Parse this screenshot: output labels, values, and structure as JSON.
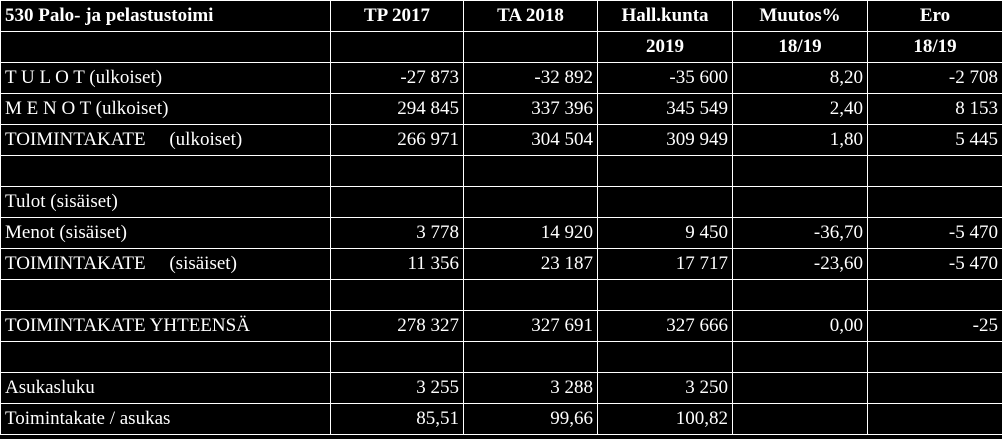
{
  "header": {
    "row1": [
      "530 Palo- ja pelastustoimi",
      "TP 2017",
      "TA 2018",
      "Hall.kunta",
      "Muutos%",
      "Ero"
    ],
    "row2": [
      "",
      "",
      "",
      "2019",
      "18/19",
      "18/19"
    ]
  },
  "rows": [
    [
      "T U L O T (ulkoiset)",
      "-27 873",
      "-32 892",
      "-35 600",
      "8,20",
      "-2 708"
    ],
    [
      "M E N O T (ulkoiset)",
      "294 845",
      "337 396",
      "345 549",
      "2,40",
      "8 153"
    ],
    [
      "TOIMINTAKATE     (ulkoiset)",
      "266 971",
      "304 504",
      "309 949",
      "1,80",
      "5 445"
    ],
    [
      "",
      "",
      "",
      "",
      "",
      ""
    ],
    [
      "Tulot (sisäiset)",
      "",
      "",
      "",
      "",
      ""
    ],
    [
      "Menot (sisäiset)",
      "3 778",
      "14 920",
      "9 450",
      "-36,70",
      "-5 470"
    ],
    [
      "TOIMINTAKATE     (sisäiset)",
      "11 356",
      "23 187",
      "17 717",
      "-23,60",
      "-5 470"
    ],
    [
      "",
      "",
      "",
      "",
      "",
      ""
    ],
    [
      "TOIMINTAKATE YHTEENSÄ",
      "278 327",
      "327 691",
      "327 666",
      "0,00",
      "-25"
    ],
    [
      "",
      "",
      "",
      "",
      "",
      ""
    ],
    [
      "Asukasluku",
      "3 255",
      "3 288",
      "3 250",
      "",
      ""
    ],
    [
      "Toimintakate / asukas",
      "85,51",
      "99,66",
      "100,82",
      "",
      ""
    ]
  ]
}
